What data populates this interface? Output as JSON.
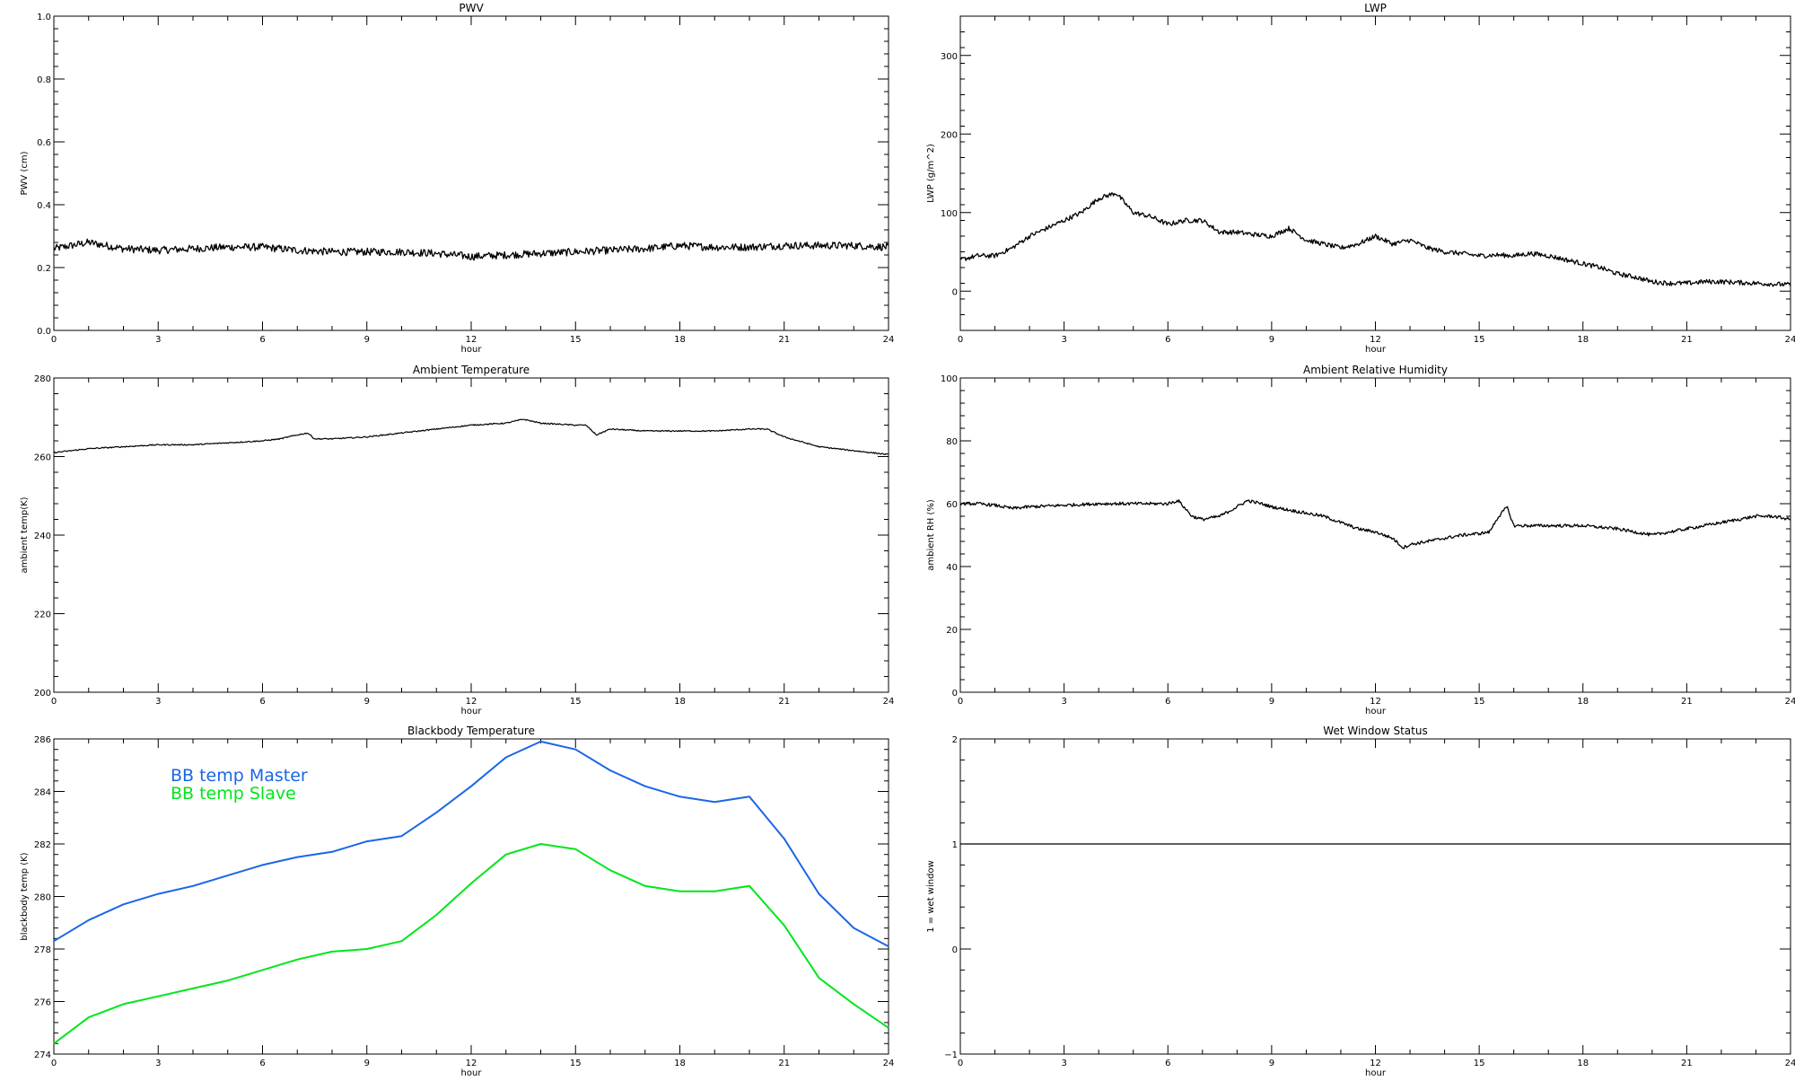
{
  "chart_data": [
    {
      "id": "pwv",
      "type": "line",
      "title": "PWV",
      "xlabel": "hour",
      "ylabel": "PWV (cm)",
      "xlim": [
        0,
        24
      ],
      "ylim": [
        0.0,
        1.0
      ],
      "xticks": [
        "0",
        "3",
        "6",
        "9",
        "12",
        "15",
        "18",
        "21",
        "24"
      ],
      "yticks": [
        "0.0",
        "0.2",
        "0.4",
        "0.6",
        "0.8",
        "1.0"
      ],
      "noise": 0.012,
      "series": [
        {
          "color": "#000000",
          "x": [
            0,
            0.5,
            1,
            1.5,
            2,
            3,
            4,
            5,
            6,
            7,
            8,
            9,
            10,
            11,
            12,
            13,
            14,
            15,
            16,
            17,
            18,
            19,
            20,
            21,
            22,
            23,
            24
          ],
          "y": [
            0.26,
            0.27,
            0.28,
            0.27,
            0.26,
            0.255,
            0.26,
            0.265,
            0.265,
            0.255,
            0.25,
            0.25,
            0.25,
            0.245,
            0.235,
            0.24,
            0.245,
            0.25,
            0.255,
            0.26,
            0.27,
            0.265,
            0.265,
            0.27,
            0.27,
            0.27,
            0.265
          ]
        }
      ]
    },
    {
      "id": "lwp",
      "type": "line",
      "title": "LWP",
      "xlabel": "hour",
      "ylabel": "LWP (g/m^2)",
      "xlim": [
        0,
        24
      ],
      "ylim": [
        -50,
        350
      ],
      "xticks": [
        "0",
        "3",
        "6",
        "9",
        "12",
        "15",
        "18",
        "21",
        "24"
      ],
      "yticks": [
        "0",
        "100",
        "200",
        "300"
      ],
      "noise": 3,
      "series": [
        {
          "color": "#000000",
          "x": [
            0,
            0.5,
            1,
            1.5,
            2,
            2.5,
            3,
            3.5,
            4,
            4.5,
            5,
            5.5,
            6,
            6.5,
            7,
            7.5,
            8,
            8.5,
            9,
            9.5,
            10,
            10.5,
            11,
            11.5,
            12,
            12.5,
            13,
            13.5,
            14,
            14.5,
            15,
            15.5,
            16,
            16.5,
            17,
            17.5,
            18,
            18.5,
            19,
            19.5,
            20,
            20.5,
            21,
            21.5,
            22,
            22.5,
            23,
            23.5,
            24
          ],
          "y": [
            40,
            45,
            45,
            55,
            70,
            80,
            90,
            100,
            118,
            125,
            100,
            95,
            85,
            90,
            90,
            75,
            75,
            72,
            70,
            80,
            65,
            60,
            55,
            60,
            70,
            60,
            65,
            55,
            50,
            48,
            45,
            46,
            45,
            48,
            45,
            40,
            35,
            30,
            22,
            18,
            12,
            10,
            10,
            12,
            12,
            11,
            10,
            9,
            8
          ]
        }
      ]
    },
    {
      "id": "ambient-temperature",
      "type": "line",
      "title": "Ambient Temperature",
      "xlabel": "hour",
      "ylabel": "ambient temp(K)",
      "xlim": [
        0,
        24
      ],
      "ylim": [
        200,
        280
      ],
      "xticks": [
        "0",
        "3",
        "6",
        "9",
        "12",
        "15",
        "18",
        "21",
        "24"
      ],
      "yticks": [
        "200",
        "220",
        "240",
        "260",
        "280"
      ],
      "noise": 0.15,
      "series": [
        {
          "color": "#000000",
          "x": [
            0,
            1,
            2,
            3,
            4,
            5,
            6,
            6.5,
            7,
            7.3,
            7.5,
            8,
            9,
            10,
            11,
            12,
            13,
            13.5,
            14,
            15,
            15.3,
            15.6,
            16,
            17,
            18,
            19,
            20,
            20.5,
            21,
            22,
            23,
            24
          ],
          "y": [
            261,
            262,
            262.5,
            263,
            263,
            263.5,
            264,
            264.5,
            265.5,
            266,
            264.5,
            264.5,
            265,
            266,
            267,
            268,
            268.5,
            269.5,
            268.5,
            268,
            268,
            265.5,
            267,
            266.5,
            266.5,
            266.5,
            267,
            267,
            265,
            262.5,
            261.5,
            260.5
          ]
        }
      ]
    },
    {
      "id": "ambient-relative-humidity",
      "type": "line",
      "title": "Ambient Relative Humidity",
      "xlabel": "hour",
      "ylabel": "ambient RH (%)",
      "xlim": [
        0,
        24
      ],
      "ylim": [
        0,
        100
      ],
      "xticks": [
        "0",
        "3",
        "6",
        "9",
        "12",
        "15",
        "18",
        "21",
        "24"
      ],
      "yticks": [
        "0",
        "20",
        "40",
        "60",
        "80",
        "100"
      ],
      "noise": 0.5,
      "series": [
        {
          "color": "#000000",
          "x": [
            0,
            0.5,
            1,
            1.5,
            2,
            3,
            4,
            5,
            6,
            6.3,
            6.7,
            7,
            7.5,
            8,
            8.3,
            8.7,
            9,
            9.5,
            10,
            10.5,
            11,
            11.5,
            12,
            12.5,
            12.8,
            13,
            13.5,
            14,
            14.5,
            15,
            15.3,
            15.5,
            15.8,
            16,
            17,
            18,
            19,
            19.5,
            20,
            20.5,
            21,
            21.5,
            22,
            22.5,
            23,
            23.5,
            24
          ],
          "y": [
            60,
            60,
            59.5,
            58.5,
            59,
            59.5,
            60,
            60,
            60,
            61,
            56,
            55,
            56,
            59,
            61,
            60,
            59,
            58,
            57,
            56,
            54,
            52,
            51,
            49,
            46,
            47,
            48,
            49,
            50,
            50.5,
            51,
            55,
            59,
            53,
            53,
            53,
            52,
            51,
            50,
            51,
            52,
            53,
            54,
            55,
            56,
            56,
            55
          ]
        }
      ]
    },
    {
      "id": "blackbody-temperature",
      "type": "line",
      "title": "Blackbody Temperature",
      "xlabel": "hour",
      "ylabel": "blackbody temp (K)",
      "xlim": [
        0,
        24
      ],
      "ylim": [
        274,
        286
      ],
      "xticks": [
        "0",
        "3",
        "6",
        "9",
        "12",
        "15",
        "18",
        "21",
        "24"
      ],
      "yticks": [
        "274",
        "276",
        "278",
        "280",
        "282",
        "284",
        "286"
      ],
      "noise": 0,
      "legend": [
        "BB temp Master",
        "BB temp Slave"
      ],
      "series": [
        {
          "name": "BB temp Master",
          "color": "#1a66e6",
          "x": [
            0,
            1,
            2,
            3,
            4,
            5,
            6,
            7,
            8,
            9,
            10,
            11,
            12,
            13,
            14,
            15,
            16,
            17,
            18,
            19,
            20,
            21,
            22,
            23,
            24
          ],
          "y": [
            278.3,
            279.1,
            279.7,
            280.1,
            280.4,
            280.8,
            281.2,
            281.5,
            281.7,
            282.1,
            282.3,
            283.2,
            284.2,
            285.3,
            285.9,
            285.6,
            284.8,
            284.2,
            283.8,
            283.6,
            283.8,
            282.2,
            280.1,
            278.8,
            278.1
          ]
        },
        {
          "name": "BB temp Slave",
          "color": "#00e61a",
          "x": [
            0,
            1,
            2,
            3,
            4,
            5,
            6,
            7,
            8,
            9,
            10,
            11,
            12,
            13,
            14,
            15,
            16,
            17,
            18,
            19,
            20,
            21,
            22,
            23,
            24
          ],
          "y": [
            274.4,
            275.4,
            275.9,
            276.2,
            276.5,
            276.8,
            277.2,
            277.6,
            277.9,
            278.0,
            278.3,
            279.3,
            280.5,
            281.6,
            282.0,
            281.8,
            281.0,
            280.4,
            280.2,
            280.2,
            280.4,
            278.9,
            276.9,
            275.9,
            275.0
          ]
        }
      ]
    },
    {
      "id": "wet-window-status",
      "type": "line",
      "title": "Wet Window Status",
      "xlabel": "hour",
      "ylabel": "1 = wet window",
      "xlim": [
        0,
        24
      ],
      "ylim": [
        -1,
        2
      ],
      "xticks": [
        "0",
        "3",
        "6",
        "9",
        "12",
        "15",
        "18",
        "21",
        "24"
      ],
      "yticks": [
        "−1",
        "0",
        "1",
        "2"
      ],
      "noise": 0,
      "series": [
        {
          "color": "#000000",
          "x": [
            0,
            24
          ],
          "y": [
            1,
            1
          ]
        }
      ]
    }
  ]
}
